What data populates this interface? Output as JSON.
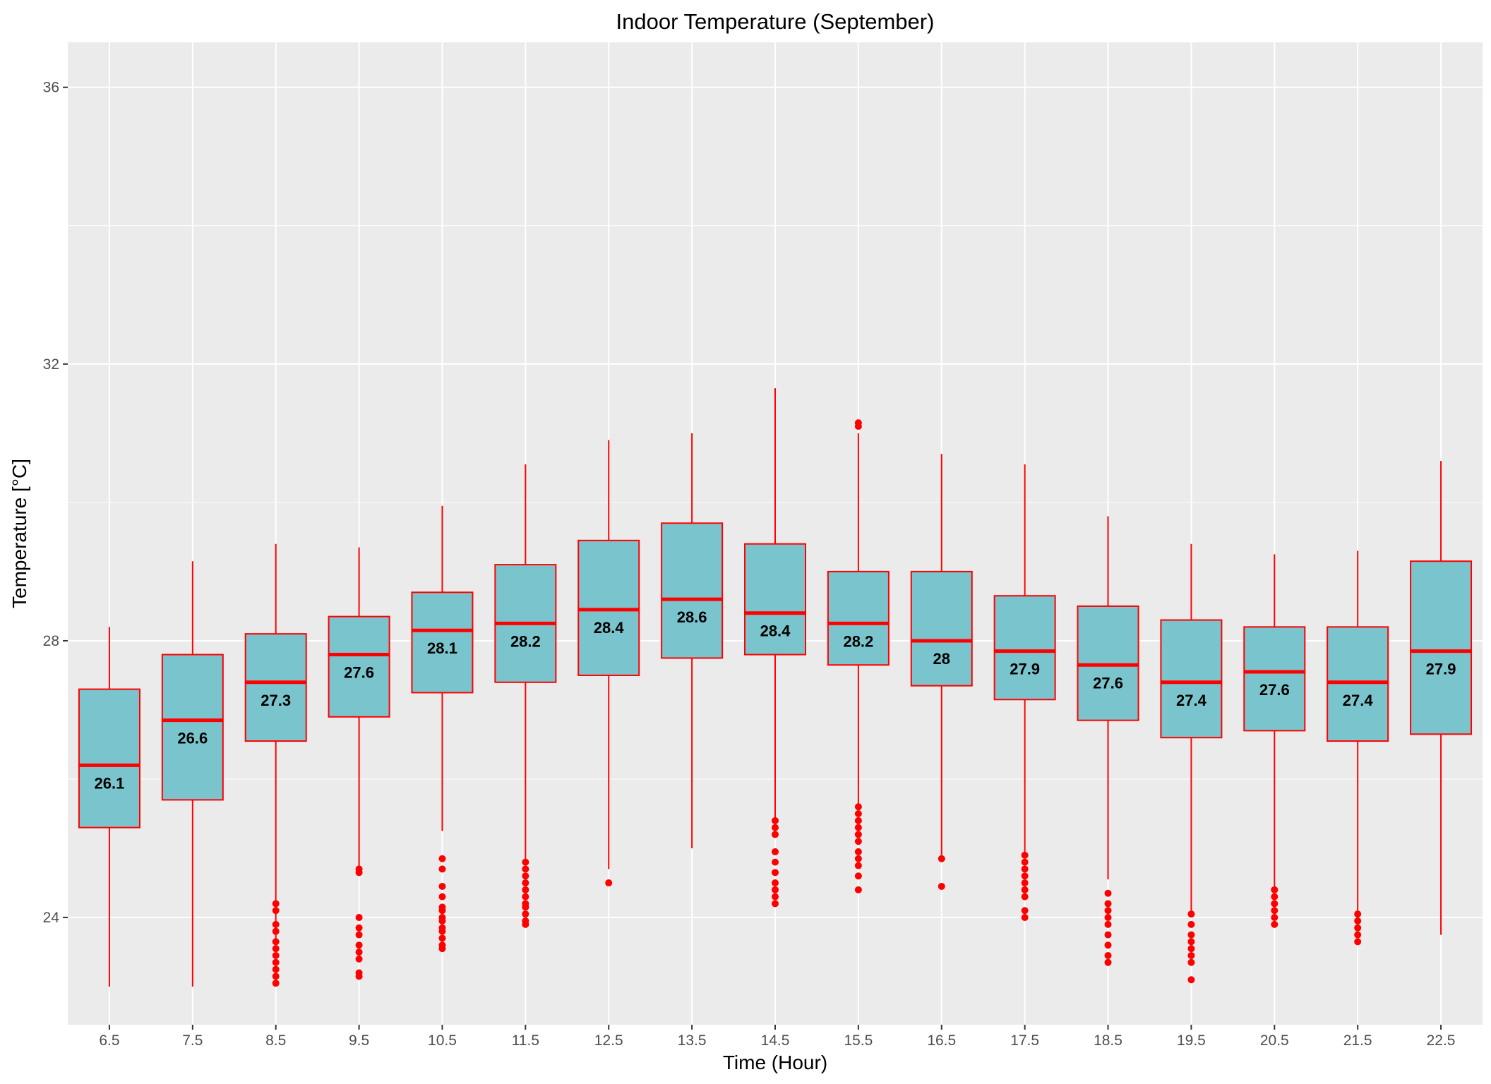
{
  "chart_data": {
    "type": "box",
    "title": "Indoor Temperature (September)",
    "xlabel": "Time (Hour)",
    "ylabel": "Temperature [°C]",
    "ylim": [
      22.45,
      36.65
    ],
    "y_ticks": [
      24,
      28,
      32,
      36
    ],
    "grid": true,
    "colors": {
      "panel": "#ebebeb",
      "grid": "#ffffff",
      "box_fill": "#7ac5cd",
      "box_stroke": "#ff0000",
      "median": "#ff0000",
      "outlier": "#ff0000",
      "tick_text": "#4d4d4d"
    },
    "categories": [
      "6.5",
      "7.5",
      "8.5",
      "9.5",
      "10.5",
      "11.5",
      "12.5",
      "13.5",
      "14.5",
      "15.5",
      "16.5",
      "17.5",
      "18.5",
      "19.5",
      "20.5",
      "21.5",
      "22.5"
    ],
    "boxes": [
      {
        "x": "6.5",
        "low": 23.0,
        "q1": 25.3,
        "median": 26.2,
        "q3": 27.3,
        "high": 28.2,
        "label": "26.1",
        "outliers": []
      },
      {
        "x": "7.5",
        "low": 23.0,
        "q1": 25.7,
        "median": 26.85,
        "q3": 27.8,
        "high": 29.15,
        "label": "26.6",
        "outliers": []
      },
      {
        "x": "8.5",
        "low": 23.6,
        "q1": 26.55,
        "median": 27.4,
        "q3": 28.1,
        "high": 29.4,
        "label": "27.3",
        "outliers": [
          24.2,
          24.1,
          23.9,
          23.8,
          23.65,
          23.55,
          23.45,
          23.35,
          23.25,
          23.15,
          23.05
        ]
      },
      {
        "x": "9.5",
        "low": 24.75,
        "q1": 26.9,
        "median": 27.8,
        "q3": 28.35,
        "high": 29.35,
        "label": "27.6",
        "outliers": [
          24.7,
          24.65,
          24.0,
          23.85,
          23.75,
          23.6,
          23.5,
          23.4,
          23.2,
          23.15
        ]
      },
      {
        "x": "10.5",
        "low": 25.25,
        "q1": 27.25,
        "median": 28.15,
        "q3": 28.7,
        "high": 29.95,
        "label": "28.1",
        "outliers": [
          24.85,
          24.7,
          24.45,
          24.3,
          24.15,
          24.1,
          24.0,
          23.95,
          23.85,
          23.8,
          23.7,
          23.6,
          23.55
        ]
      },
      {
        "x": "11.5",
        "low": 24.8,
        "q1": 27.4,
        "median": 28.25,
        "q3": 29.1,
        "high": 30.55,
        "label": "28.2",
        "outliers": [
          24.8,
          24.7,
          24.6,
          24.5,
          24.4,
          24.3,
          24.2,
          24.15,
          24.05,
          23.95,
          23.9
        ]
      },
      {
        "x": "12.5",
        "low": 24.7,
        "q1": 27.5,
        "median": 28.45,
        "q3": 29.45,
        "high": 30.9,
        "label": "28.4",
        "outliers": [
          24.5
        ]
      },
      {
        "x": "13.5",
        "low": 25.0,
        "q1": 27.75,
        "median": 28.6,
        "q3": 29.7,
        "high": 31.0,
        "label": "28.6",
        "outliers": []
      },
      {
        "x": "14.5",
        "low": 25.4,
        "q1": 27.8,
        "median": 28.4,
        "q3": 29.4,
        "high": 31.65,
        "label": "28.4",
        "outliers": [
          25.4,
          25.3,
          25.2,
          24.95,
          24.8,
          24.65,
          24.5,
          24.4,
          24.3,
          24.2
        ]
      },
      {
        "x": "15.5",
        "low": 25.6,
        "q1": 27.65,
        "median": 28.25,
        "q3": 29.0,
        "high": 31.0,
        "label": "28.2",
        "outliers": [
          31.15,
          31.1,
          25.6,
          25.5,
          25.4,
          25.3,
          25.2,
          25.1,
          24.95,
          24.85,
          24.75,
          24.6,
          24.4
        ]
      },
      {
        "x": "16.5",
        "low": 24.9,
        "q1": 27.35,
        "median": 28.0,
        "q3": 29.0,
        "high": 30.7,
        "label": "28",
        "outliers": [
          24.85,
          24.45
        ]
      },
      {
        "x": "17.5",
        "low": 24.9,
        "q1": 27.15,
        "median": 27.85,
        "q3": 28.65,
        "high": 30.55,
        "label": "27.9",
        "outliers": [
          24.9,
          24.8,
          24.7,
          24.6,
          24.5,
          24.4,
          24.3,
          24.1,
          24.0
        ]
      },
      {
        "x": "18.5",
        "low": 24.55,
        "q1": 26.85,
        "median": 27.65,
        "q3": 28.5,
        "high": 29.8,
        "label": "27.6",
        "outliers": [
          24.35,
          24.2,
          24.1,
          24.0,
          23.9,
          23.75,
          23.6,
          23.45,
          23.35
        ]
      },
      {
        "x": "19.5",
        "low": 24.1,
        "q1": 26.6,
        "median": 27.4,
        "q3": 28.3,
        "high": 29.4,
        "label": "27.4",
        "outliers": [
          24.05,
          23.9,
          23.75,
          23.65,
          23.55,
          23.45,
          23.35,
          23.1
        ]
      },
      {
        "x": "20.5",
        "low": 24.4,
        "q1": 26.7,
        "median": 27.55,
        "q3": 28.2,
        "high": 29.25,
        "label": "27.6",
        "outliers": [
          24.4,
          24.3,
          24.2,
          24.1,
          24.0,
          23.9
        ]
      },
      {
        "x": "21.5",
        "low": 24.1,
        "q1": 26.55,
        "median": 27.4,
        "q3": 28.2,
        "high": 29.3,
        "label": "27.4",
        "outliers": [
          24.05,
          23.95,
          23.85,
          23.75,
          23.65
        ]
      },
      {
        "x": "22.5",
        "low": 23.75,
        "q1": 26.65,
        "median": 27.85,
        "q3": 29.15,
        "high": 30.6,
        "label": "27.9",
        "outliers": []
      }
    ]
  }
}
